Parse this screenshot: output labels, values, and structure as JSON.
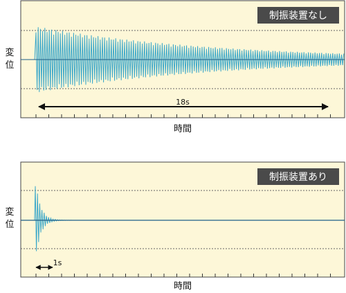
{
  "chart_data": [
    {
      "type": "line",
      "title": "",
      "badge": "制振装置なし",
      "ylabel_lines": [
        "変",
        "位"
      ],
      "xlabel": "時間",
      "series": [
        {
          "values": [],
          "color": "#3aa7c9",
          "oscillation": "sustained decay",
          "peak_amplitude": 1.0,
          "decay_duration_s": 18
        }
      ],
      "annotation": {
        "label": "18s",
        "span_s": [
          0,
          18
        ]
      },
      "grid": "dotted reference lines at ±peak",
      "background": "#fdf7d8"
    },
    {
      "type": "line",
      "title": "",
      "badge": "制振装置あり",
      "ylabel_lines": [
        "変",
        "位"
      ],
      "xlabel": "時間",
      "series": [
        {
          "values": [],
          "color": "#3aa7c9",
          "oscillation": "rapid decay",
          "peak_amplitude": 1.0,
          "decay_duration_s": 1
        }
      ],
      "annotation": {
        "label": "1s",
        "span_s": [
          0,
          1
        ]
      },
      "grid": "dotted reference lines at ±peak",
      "background": "#fdf7d8"
    }
  ]
}
